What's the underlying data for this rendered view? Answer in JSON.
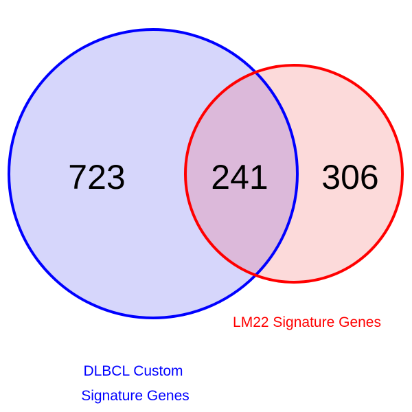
{
  "diagram": {
    "type": "venn",
    "sets": [
      {
        "id": "dlbcl",
        "label_lines": [
          "DLBCL Custom",
          "Signature Genes"
        ],
        "stroke_color": "#0000ff",
        "fill_color": "#d6d6fb",
        "only_count": "723"
      },
      {
        "id": "lm22",
        "label_lines": [
          "LM22 Signature Genes"
        ],
        "stroke_color": "#ff0000",
        "fill_color": "#fcdada",
        "only_count": "306"
      }
    ],
    "intersection": {
      "count": "241",
      "fill_color": "#dcb9da"
    }
  }
}
